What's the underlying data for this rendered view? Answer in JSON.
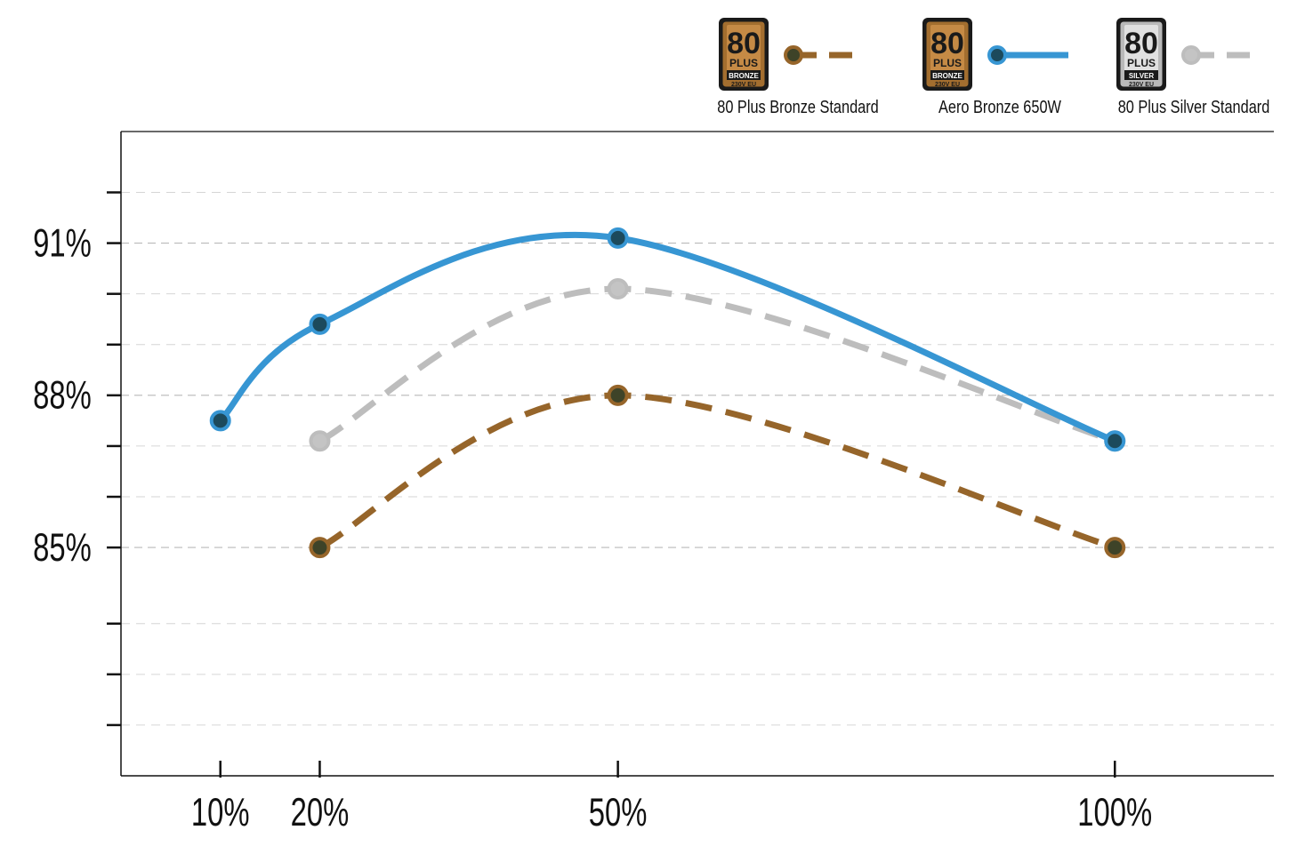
{
  "chart_data": {
    "type": "line",
    "title": "",
    "xlabel": "",
    "ylabel": "",
    "x_categories": [
      "10%",
      "20%",
      "50%",
      "100%"
    ],
    "x_positions": [
      10,
      20,
      50,
      100
    ],
    "xlim": [
      0,
      116
    ],
    "ylim": [
      80.5,
      93.2
    ],
    "yticks": [
      {
        "value": 85,
        "label": "85%"
      },
      {
        "value": 88,
        "label": "88%"
      },
      {
        "value": 91,
        "label": "91%"
      }
    ],
    "minor_ticks": [
      81.5,
      82.5,
      83.5,
      86.0,
      87.0,
      89.0,
      90.0,
      92.0
    ],
    "grid": true,
    "legend_position": "top-right",
    "series": [
      {
        "name": "80 Plus Bronze Standard",
        "badge": {
          "big": "80",
          "mid": "PLUS",
          "tier": "BRONZE",
          "sub": "230V EU"
        },
        "color": "#96652a",
        "marker_fill": "#3e4328",
        "style": "dashed",
        "x": [
          20,
          50,
          100
        ],
        "values": [
          85.0,
          88.0,
          85.0
        ]
      },
      {
        "name": "Aero Bronze 650W",
        "badge": {
          "big": "80",
          "mid": "PLUS",
          "tier": "BRONZE",
          "sub": "230V EU"
        },
        "color": "#3796d3",
        "marker_fill": "#1c4a5c",
        "style": "solid",
        "x": [
          10,
          20,
          50,
          100
        ],
        "values": [
          87.5,
          89.4,
          91.1,
          87.1
        ]
      },
      {
        "name": "80 Plus Silver Standard",
        "badge": {
          "big": "80",
          "mid": "PLUS",
          "tier": "SILVER",
          "sub": "230V EU"
        },
        "color": "#bdbdbd",
        "marker_fill": "#c4c4c4",
        "style": "dashed",
        "x": [
          20,
          50,
          100
        ],
        "values": [
          87.1,
          90.1,
          87.1
        ]
      }
    ]
  }
}
